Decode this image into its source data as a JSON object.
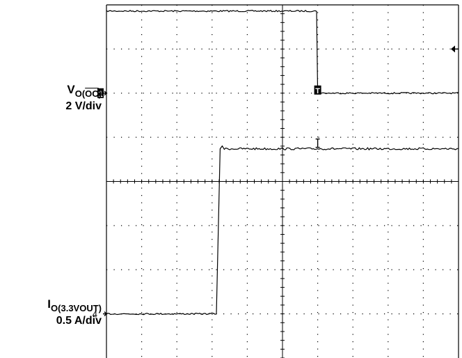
{
  "chart_data": {
    "type": "line",
    "title": "",
    "grid": true,
    "divisions": {
      "x": 10,
      "y": 8
    },
    "channels": [
      {
        "id": "1",
        "marker": "1",
        "symbol": "V",
        "subscript_open": "O(",
        "subscript_bar": "OC",
        "subscript_close": ")",
        "scale": "2 V/div",
        "offset_div": 6.0,
        "edge_time_div": 6.0,
        "levels_div": [
          7.86,
          6.0
        ]
      },
      {
        "id": "4",
        "marker": "4",
        "symbol": "I",
        "subscript": "O(3.3VOUT)",
        "scale": "0.5 A/div",
        "offset_div": 1.0,
        "edge_time_div": 3.15,
        "levels_div": [
          1.0,
          4.74
        ]
      }
    ],
    "trigger_marker": "T",
    "trigger_time_div": 6.0,
    "trigger_level_marker": "arrow-left-icon"
  }
}
